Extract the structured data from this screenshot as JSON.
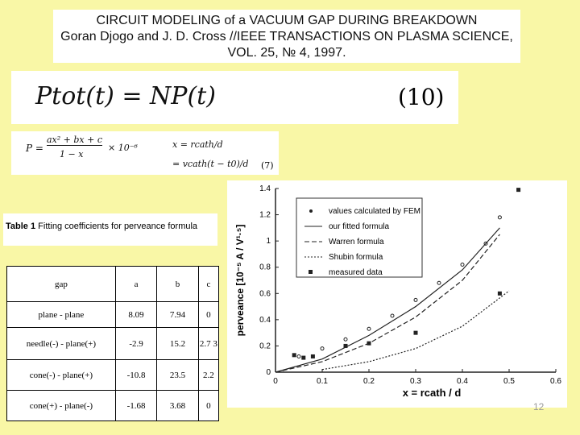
{
  "title": {
    "line1": "CIRCUIT MODELING of a VACUUM GAP DURING BREAKDOWN",
    "line2": "Goran Djogo and J. D. Cross //IEEE TRANSACTIONS ON PLASMA SCIENCE,",
    "line3": "VOL. 25, № 4, 1997."
  },
  "formula10": {
    "lhs": "Ptot(t) = NP(t)",
    "number": "(10)"
  },
  "formula7": {
    "p_lhs": "P =",
    "p_num": "ax² + bx + c",
    "p_den": "1 − x",
    "p_factor": "× 10⁻⁶",
    "x_def": "x = rcath/d",
    "x_def2": "= vcath(t − t0)/d",
    "number": "(7)"
  },
  "table": {
    "caption_bold": "Table 1",
    "caption_text": " Fitting coefficients for perveance formula",
    "headers": [
      "gap",
      "a",
      "b",
      "c"
    ],
    "rows": [
      [
        "plane - plane",
        "8.09",
        "7.94",
        "0"
      ],
      [
        "needle(-) - plane(+)",
        "-2.9",
        "15.2",
        "2.7 3"
      ],
      [
        "cone(-) - plane(+)",
        "-10.8",
        "23.5",
        "2.2"
      ],
      [
        "cone(+) - plane(-)",
        "-1.68",
        "3.68",
        "0"
      ]
    ]
  },
  "chart_data": {
    "type": "scatter",
    "xlabel": "x = rcath / d",
    "ylabel": "perveance [10⁻⁵ A / V¹·⁵]",
    "xlim": [
      0,
      0.6
    ],
    "ylim": [
      0,
      1.4
    ],
    "xticks": [
      "0",
      "0.1",
      "0.2",
      "0.3",
      "0.4",
      "0.5",
      "0.6"
    ],
    "yticks": [
      "0",
      "0.2",
      "0.4",
      "0.6",
      "0.8",
      "1",
      "1.2",
      "1.4"
    ],
    "legend": [
      "values calculated by FEM",
      "our fitted formula",
      "Warren formula",
      "Shubin formula",
      "measured data"
    ],
    "series": [
      {
        "name": "values calculated by FEM",
        "x": [
          0.05,
          0.1,
          0.15,
          0.2,
          0.25,
          0.3,
          0.35,
          0.4,
          0.45,
          0.48
        ],
        "y": [
          0.12,
          0.18,
          0.25,
          0.33,
          0.43,
          0.55,
          0.68,
          0.82,
          0.98,
          1.18
        ]
      },
      {
        "name": "measured data",
        "x": [
          0.04,
          0.06,
          0.08,
          0.15,
          0.2,
          0.3,
          0.48,
          0.52
        ],
        "y": [
          0.13,
          0.11,
          0.12,
          0.2,
          0.22,
          0.3,
          0.6,
          1.39
        ]
      },
      {
        "name": "our fitted formula",
        "x": [
          0.0,
          0.1,
          0.2,
          0.3,
          0.4,
          0.48
        ],
        "y": [
          0.0,
          0.1,
          0.28,
          0.5,
          0.78,
          1.1
        ]
      },
      {
        "name": "Warren formula",
        "x": [
          0.0,
          0.1,
          0.2,
          0.3,
          0.4,
          0.48
        ],
        "y": [
          0.0,
          0.08,
          0.22,
          0.42,
          0.7,
          1.05
        ]
      },
      {
        "name": "Shubin formula",
        "x": [
          0.1,
          0.2,
          0.3,
          0.4,
          0.5
        ],
        "y": [
          0.02,
          0.08,
          0.18,
          0.35,
          0.62
        ]
      }
    ]
  },
  "page_number": "12"
}
